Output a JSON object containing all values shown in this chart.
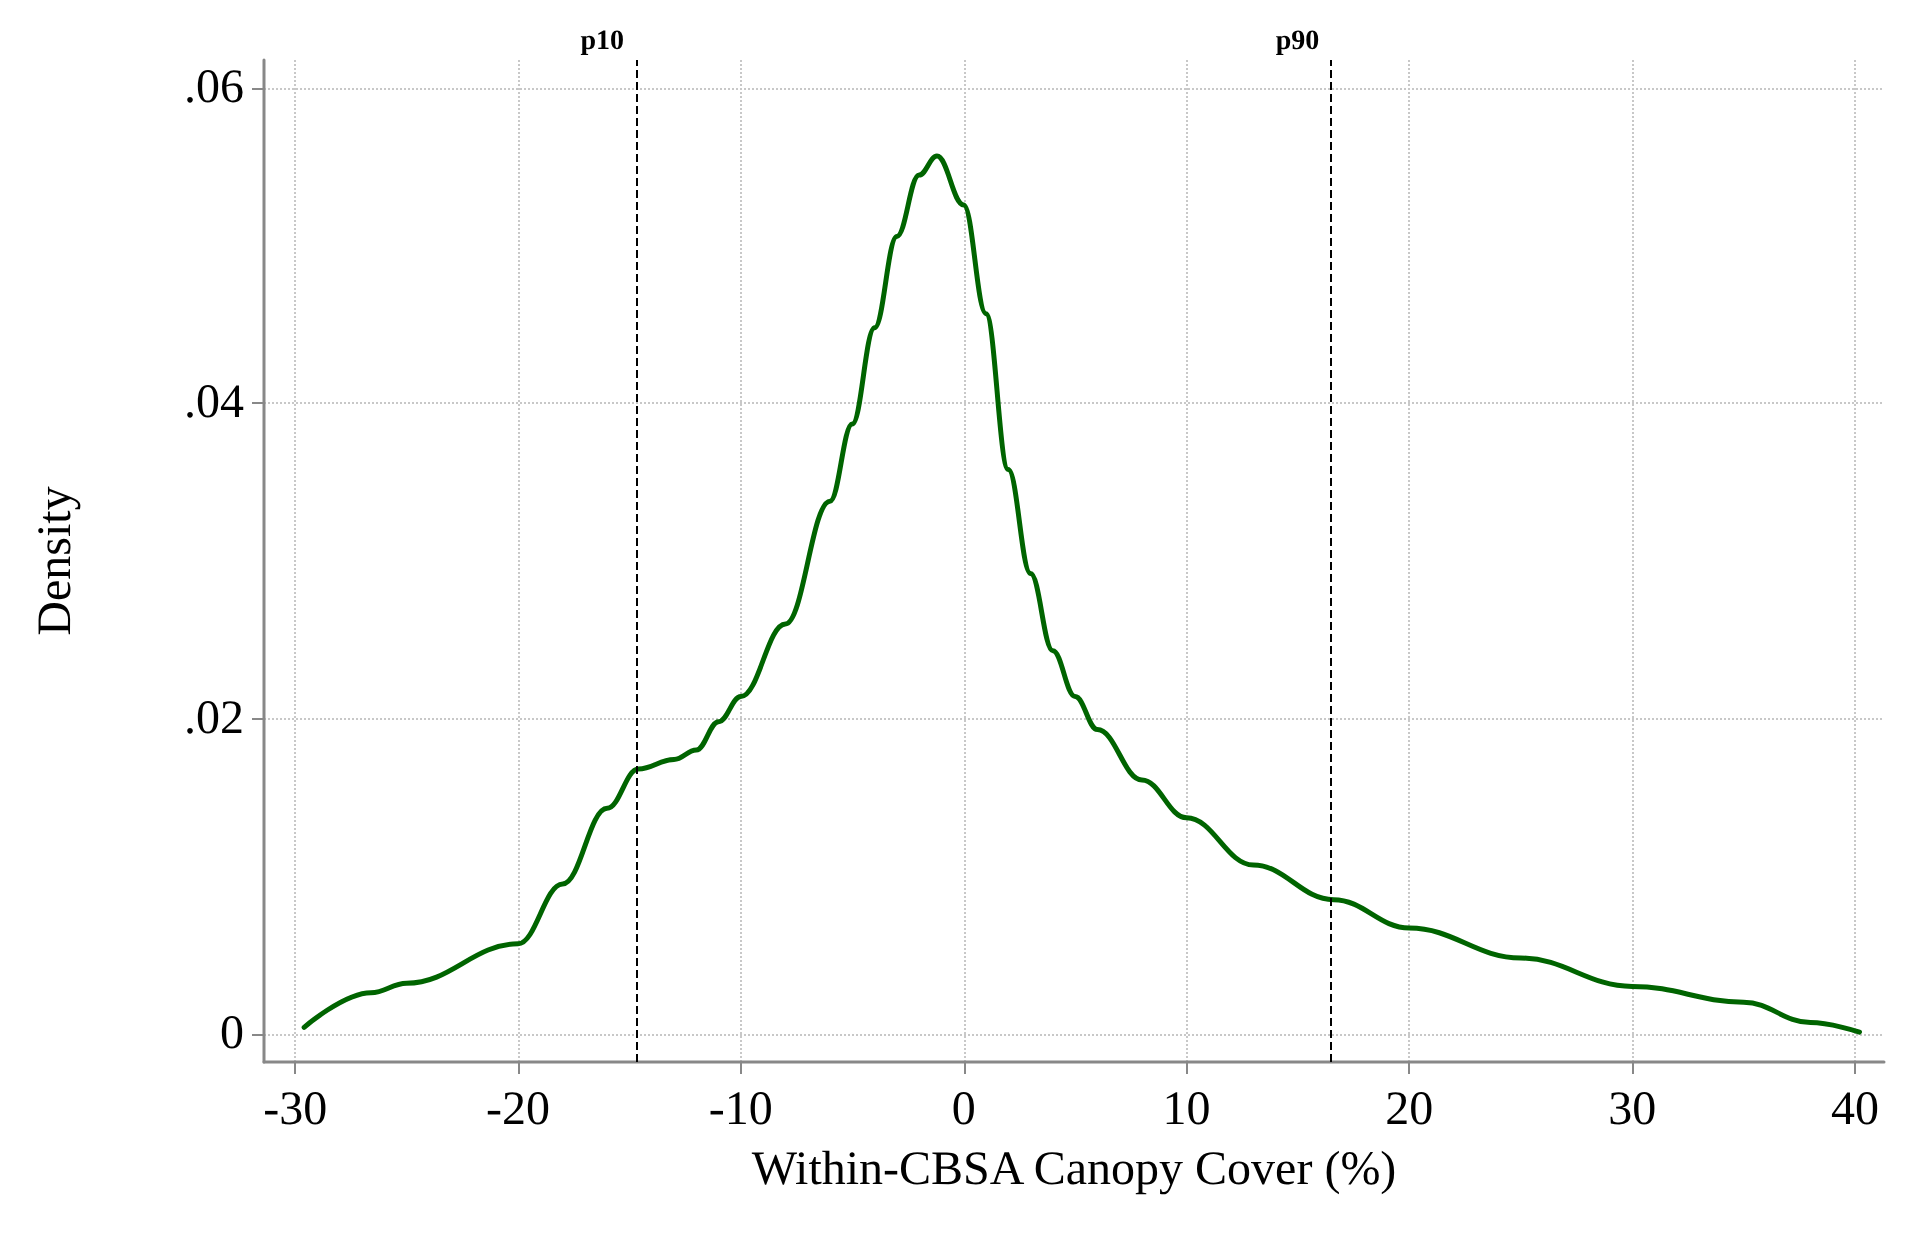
{
  "chart_data": {
    "type": "line",
    "xlabel": "Within-CBSA Canopy Cover (%)",
    "ylabel": "Density",
    "series": [
      {
        "color": "#006400",
        "x": [
          -29.6,
          -26.6,
          -25,
          -20,
          -18,
          -16,
          -14.6,
          -13,
          -12,
          -11,
          -10,
          -8,
          -6,
          -5,
          -4,
          -3,
          -2,
          -1.2,
          0,
          1,
          2,
          3,
          4,
          5,
          6,
          8,
          10,
          13,
          16.6,
          20,
          25,
          30,
          35,
          38,
          40.2
        ],
        "values": [
          0.0004,
          0.0026,
          0.0032,
          0.0057,
          0.0095,
          0.0143,
          0.0168,
          0.0174,
          0.018,
          0.0198,
          0.0214,
          0.026,
          0.0338,
          0.0387,
          0.0448,
          0.0506,
          0.0545,
          0.0557,
          0.0526,
          0.0457,
          0.0358,
          0.0292,
          0.0243,
          0.0214,
          0.0193,
          0.0161,
          0.0137,
          0.0107,
          0.0085,
          0.0067,
          0.0048,
          0.003,
          0.002,
          0.0007,
          0.0001
        ]
      }
    ],
    "xlim": [
      -31.4,
      41.3
    ],
    "xticks": [
      -30,
      -20,
      -10,
      0,
      10,
      20,
      30,
      40
    ],
    "ylim": [
      -0.0018,
      0.0618
    ],
    "yticks": [
      {
        "value": 0,
        "label": "0"
      },
      {
        "value": 0.02,
        "label": ".02"
      },
      {
        "value": 0.04,
        "label": ".04"
      },
      {
        "value": 0.06,
        "label": ".06"
      }
    ],
    "ref_lines": [
      {
        "axis": "x",
        "value": -14.7,
        "label": "p10",
        "color": "#000000",
        "line_style": "dashed"
      },
      {
        "axis": "x",
        "value": 16.5,
        "label": "p90",
        "color": "#000000",
        "line_style": "dashed"
      }
    ],
    "grid": true,
    "marker": "none",
    "line_style": "solid"
  }
}
